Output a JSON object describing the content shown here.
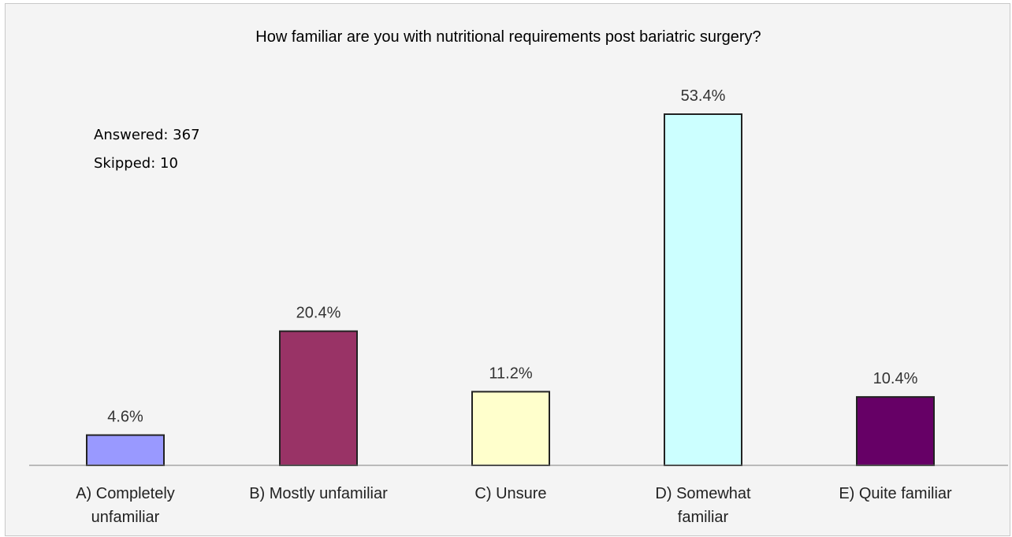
{
  "chart_data": {
    "type": "bar",
    "title": "How familiar are you with nutritional requirements post bariatric surgery?",
    "categories": [
      [
        "A) Completely",
        "unfamiliar"
      ],
      [
        "B) Mostly unfamiliar"
      ],
      [
        "C) Unsure"
      ],
      [
        "D) Somewhat",
        "familiar"
      ],
      [
        "E) Quite familiar"
      ]
    ],
    "values": [
      4.6,
      20.4,
      11.2,
      53.4,
      10.4
    ],
    "value_labels": [
      "4.6%",
      "20.4%",
      "11.2%",
      "53.4%",
      "10.4%"
    ],
    "bar_colors": [
      "#9999ff",
      "#993366",
      "#ffffcc",
      "#ccffff",
      "#660066"
    ],
    "ylim": [
      0,
      60
    ],
    "grid": false,
    "legend": "none"
  },
  "stats": {
    "answered": "Answered:  367",
    "skipped": "Skipped:   10"
  }
}
